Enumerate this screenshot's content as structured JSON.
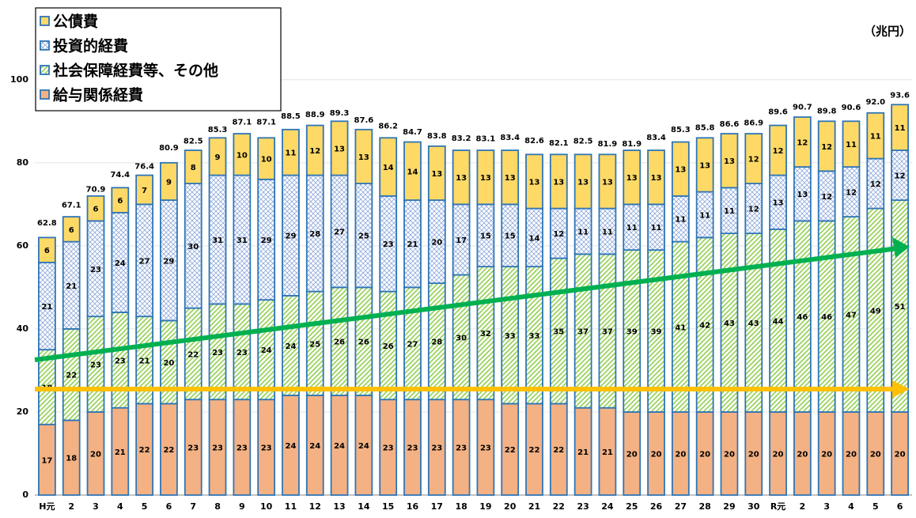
{
  "chart_data": {
    "type": "stacked_bar",
    "unit": "（兆円）",
    "categories": [
      "H元",
      "2",
      "3",
      "4",
      "5",
      "6",
      "7",
      "8",
      "9",
      "10",
      "11",
      "12",
      "13",
      "14",
      "15",
      "16",
      "17",
      "18",
      "19",
      "20",
      "21",
      "22",
      "23",
      "24",
      "25",
      "26",
      "27",
      "28",
      "29",
      "30",
      "R元",
      "2",
      "3",
      "4",
      "5",
      "6"
    ],
    "series": [
      {
        "name": "給与関係経費",
        "color": "#f4b183",
        "pattern": "solid",
        "values": [
          17,
          18,
          20,
          21,
          22,
          22,
          23,
          23,
          23,
          23,
          24,
          24,
          24,
          24,
          23,
          23,
          23,
          23,
          23,
          22,
          22,
          22,
          21,
          21,
          20,
          20,
          20,
          20,
          20,
          20,
          20,
          20,
          20,
          20,
          20,
          20
        ]
      },
      {
        "name": "社会保障経費等、その他",
        "color": "#92d050",
        "pattern": "hatch",
        "values": [
          18,
          22,
          23,
          23,
          21,
          20,
          22,
          23,
          23,
          24,
          24,
          25,
          26,
          26,
          26,
          27,
          28,
          30,
          32,
          33,
          33,
          35,
          37,
          37,
          39,
          39,
          41,
          42,
          43,
          43,
          44,
          46,
          46,
          47,
          49,
          51
        ]
      },
      {
        "name": "投資的経費",
        "color": "#8faadc",
        "pattern": "cross",
        "values": [
          21,
          21,
          23,
          24,
          27,
          29,
          30,
          31,
          31,
          29,
          29,
          28,
          27,
          25,
          23,
          21,
          20,
          17,
          15,
          15,
          14,
          12,
          11,
          11,
          11,
          11,
          11,
          11,
          11,
          12,
          13,
          13,
          12,
          12,
          12,
          12
        ]
      },
      {
        "name": "公債費",
        "color": "#ffd966",
        "pattern": "solid",
        "values": [
          6,
          6,
          6,
          6,
          7,
          9,
          8,
          9,
          10,
          10,
          11,
          12,
          13,
          13,
          14,
          14,
          13,
          13,
          13,
          13,
          13,
          13,
          13,
          13,
          13,
          13,
          13,
          13,
          13,
          12,
          12,
          12,
          12,
          11,
          11,
          11
        ]
      }
    ],
    "totals": [
      62.8,
      67.1,
      70.9,
      74.4,
      76.4,
      80.9,
      82.5,
      85.3,
      87.1,
      87.1,
      88.5,
      88.9,
      89.3,
      87.6,
      86.2,
      84.7,
      83.8,
      83.2,
      83.1,
      83.4,
      82.6,
      82.1,
      82.5,
      81.9,
      81.9,
      83.4,
      85.3,
      85.8,
      86.6,
      86.9,
      89.6,
      90.7,
      89.8,
      90.6,
      92.0,
      93.6
    ],
    "total_labels": [
      "62.8",
      "67.1",
      "70.9",
      "74.4",
      "76.4",
      "80.9",
      "82.5",
      "85.3",
      "87.1",
      "87.1",
      "88.5",
      "88.9",
      "89.3",
      "87.6",
      "86.2",
      "84.7",
      "83.8",
      "83.2",
      "83.1",
      "83.4",
      "82.6",
      "82.1",
      "82.5",
      "81.9",
      "81.9",
      "83.4",
      "85.3",
      "85.8",
      "86.6",
      "86.9",
      "89.6",
      "90.7",
      "89.8",
      "90.6",
      "92.0",
      "93.6"
    ],
    "ylim": [
      0,
      115
    ],
    "yticks": [
      0,
      20,
      40,
      60,
      80,
      100
    ],
    "grid": true,
    "legend": "top-left",
    "border_color": "#2e75b6"
  }
}
